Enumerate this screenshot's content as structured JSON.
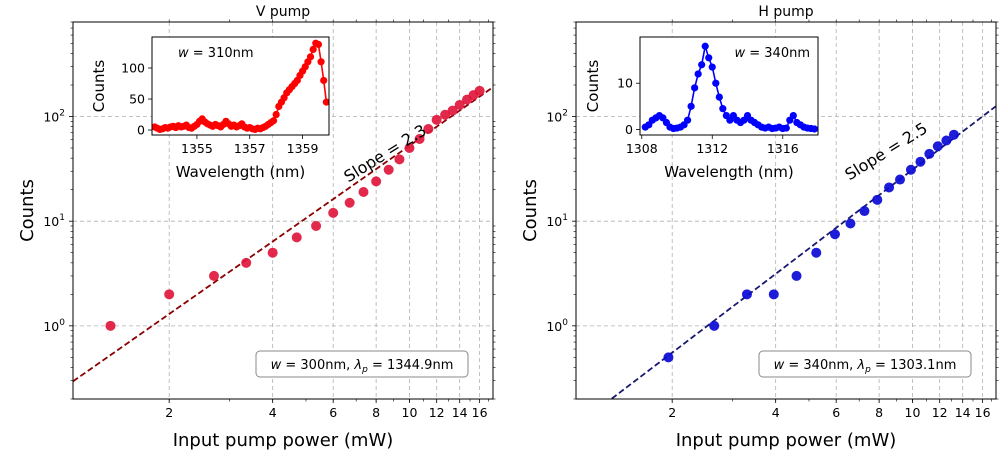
{
  "chart_data": [
    {
      "type": "scatter",
      "title": "V pump",
      "xlabel": "Input pump power (mW)",
      "ylabel": "Counts",
      "xscale": "log",
      "yscale": "log",
      "xlim": [
        1.05,
        17.5
      ],
      "ylim": [
        0.2,
        800
      ],
      "grid": true,
      "xticks": [
        {
          "value": 2,
          "label": "2"
        },
        {
          "value": 4,
          "label": "4"
        },
        {
          "value": 6,
          "label": "6"
        },
        {
          "value": 8,
          "label": "8"
        },
        {
          "value": 10,
          "label": "10"
        },
        {
          "value": 12,
          "label": "12"
        },
        {
          "value": 14,
          "label": "14"
        },
        {
          "value": 16,
          "label": "16"
        }
      ],
      "yticks": [
        {
          "value": 1,
          "base": "10",
          "exp": "0"
        },
        {
          "value": 10,
          "base": "10",
          "exp": "1"
        },
        {
          "value": 100,
          "base": "10",
          "exp": "2"
        }
      ],
      "points": {
        "color": "#e0163c",
        "x": [
          1.35,
          2.0,
          2.7,
          3.35,
          4.0,
          4.7,
          5.35,
          6.0,
          6.7,
          7.35,
          8.0,
          8.7,
          9.35,
          10.0,
          10.7,
          11.35,
          12.0,
          12.7,
          13.35,
          14.0,
          14.7,
          15.35,
          16.0
        ],
        "y": [
          1,
          2,
          3,
          4,
          5,
          7,
          9,
          12,
          15,
          19,
          24,
          31,
          39,
          50,
          61,
          76,
          93,
          104,
          114,
          129,
          145,
          160,
          176
        ]
      },
      "fit": {
        "color": "#8b0000",
        "slope": 2.3,
        "x_ref": 12.0,
        "y_ref": 80
      },
      "slope_label": "Slope = 2.3",
      "params_label": {
        "w": "w",
        "eq1": " = 300nm, ",
        "lam": "λ",
        "sub": "p",
        "eq2": " = 1344.9nm"
      },
      "inset": {
        "type": "line",
        "xlabel": "Wavelength (nm)",
        "ylabel": "Counts",
        "xlim": [
          1353.3,
          1360.0
        ],
        "ylim": [
          -8,
          150
        ],
        "xticks": [
          {
            "value": 1355,
            "label": "1355"
          },
          {
            "value": 1357,
            "label": "1357"
          },
          {
            "value": 1359,
            "label": "1359"
          }
        ],
        "yticks": [
          {
            "value": 0,
            "label": "0"
          },
          {
            "value": 50,
            "label": "50"
          },
          {
            "value": 100,
            "label": "100"
          }
        ],
        "label_w": "w",
        "label_rest": " = 310nm",
        "color": "#ff0000",
        "x": [
          1353.4,
          1353.5,
          1353.6,
          1353.7,
          1353.8,
          1353.9,
          1354.0,
          1354.1,
          1354.2,
          1354.3,
          1354.4,
          1354.5,
          1354.6,
          1354.7,
          1354.8,
          1354.9,
          1355.0,
          1355.1,
          1355.2,
          1355.3,
          1355.4,
          1355.5,
          1355.6,
          1355.7,
          1355.8,
          1355.9,
          1356.0,
          1356.1,
          1356.2,
          1356.3,
          1356.4,
          1356.5,
          1356.6,
          1356.7,
          1356.8,
          1356.9,
          1357.0,
          1357.1,
          1357.2,
          1357.3,
          1357.4,
          1357.5,
          1357.6,
          1357.7,
          1357.8,
          1357.9,
          1358.0,
          1358.1,
          1358.2,
          1358.3,
          1358.4,
          1358.5,
          1358.6,
          1358.7,
          1358.8,
          1358.9,
          1359.0,
          1359.1,
          1359.2,
          1359.3,
          1359.4,
          1359.5,
          1359.6,
          1359.7,
          1359.8,
          1359.9
        ],
        "y": [
          5,
          3,
          1,
          2,
          4,
          3,
          5,
          6,
          4,
          7,
          5,
          6,
          8,
          4,
          3,
          6,
          9,
          14,
          18,
          13,
          10,
          8,
          6,
          9,
          7,
          5,
          9,
          14,
          10,
          6,
          8,
          5,
          7,
          10,
          5,
          3,
          4,
          2,
          1,
          3,
          2,
          4,
          6,
          9,
          12,
          15,
          25,
          38,
          45,
          52,
          60,
          65,
          70,
          75,
          80,
          88,
          95,
          102,
          110,
          118,
          130,
          140,
          138,
          110,
          80,
          45
        ]
      }
    },
    {
      "type": "scatter",
      "title": "H pump",
      "xlabel": "Input pump power (mW)",
      "ylabel": "Counts",
      "xscale": "log",
      "yscale": "log",
      "xlim": [
        1.05,
        17.5
      ],
      "ylim": [
        0.2,
        800
      ],
      "grid": true,
      "xticks": [
        {
          "value": 2,
          "label": "2"
        },
        {
          "value": 4,
          "label": "4"
        },
        {
          "value": 6,
          "label": "6"
        },
        {
          "value": 8,
          "label": "8"
        },
        {
          "value": 10,
          "label": "10"
        },
        {
          "value": 12,
          "label": "12"
        },
        {
          "value": 14,
          "label": "14"
        },
        {
          "value": 16,
          "label": "16"
        }
      ],
      "yticks": [
        {
          "value": 1,
          "base": "10",
          "exp": "0"
        },
        {
          "value": 10,
          "base": "10",
          "exp": "1"
        },
        {
          "value": 100,
          "base": "10",
          "exp": "2"
        }
      ],
      "points": {
        "color": "#0a0ad6",
        "x": [
          1.95,
          2.65,
          3.3,
          3.95,
          4.6,
          5.25,
          5.95,
          6.6,
          7.25,
          7.9,
          8.55,
          9.2,
          9.9,
          10.55,
          11.2,
          11.85,
          12.55,
          13.2
        ],
        "y": [
          0.5,
          1.0,
          2.0,
          2.0,
          3.0,
          5.0,
          7.5,
          9.5,
          12.5,
          16,
          21,
          25,
          31,
          37,
          44,
          52,
          59,
          67
        ]
      },
      "fit": {
        "color": "#191970",
        "slope": 2.5,
        "x_ref": 10.0,
        "y_ref": 31
      },
      "slope_label": "Slope = 2.5",
      "params_label": {
        "w": "w",
        "eq1": " = 340nm, ",
        "lam": "λ",
        "sub": "p",
        "eq2": " = 1303.1nm"
      },
      "inset": {
        "type": "line",
        "xlabel": "Wavelength (nm)",
        "ylabel": "Counts",
        "xlim": [
          1307.9,
          1318.0
        ],
        "ylim": [
          -1.2,
          20
        ],
        "xticks": [
          {
            "value": 1308,
            "label": "1308"
          },
          {
            "value": 1312,
            "label": "1312"
          },
          {
            "value": 1316,
            "label": "1316"
          }
        ],
        "yticks": [
          {
            "value": 0,
            "label": "0"
          },
          {
            "value": 10,
            "label": "10"
          }
        ],
        "label_w": "w",
        "label_rest": " = 340nm",
        "color": "#0000ff",
        "x": [
          1308.2,
          1308.4,
          1308.6,
          1308.8,
          1309.0,
          1309.2,
          1309.4,
          1309.6,
          1309.8,
          1310.0,
          1310.2,
          1310.4,
          1310.6,
          1310.8,
          1311.0,
          1311.2,
          1311.4,
          1311.6,
          1311.8,
          1312.0,
          1312.2,
          1312.4,
          1312.6,
          1312.8,
          1313.0,
          1313.2,
          1313.4,
          1313.6,
          1313.8,
          1314.0,
          1314.2,
          1314.4,
          1314.6,
          1314.8,
          1315.0,
          1315.2,
          1315.4,
          1315.6,
          1315.8,
          1316.0,
          1316.2,
          1316.4,
          1316.6,
          1316.8,
          1317.0,
          1317.2,
          1317.4,
          1317.6,
          1317.8
        ],
        "y": [
          0.5,
          1.0,
          2.0,
          2.5,
          3.0,
          2.5,
          1.5,
          0.5,
          0.2,
          0.3,
          0.5,
          1.0,
          2.0,
          5.0,
          9.0,
          12.0,
          14.0,
          18.0,
          15.5,
          13.5,
          10.0,
          7.0,
          4.5,
          3.0,
          2.0,
          3.0,
          2.0,
          1.5,
          2.0,
          3.0,
          2.0,
          1.5,
          1.0,
          0.5,
          0.3,
          0.5,
          0.2,
          0.3,
          0.5,
          0.2,
          0.3,
          2.0,
          3.0,
          1.5,
          1.0,
          0.5,
          0.3,
          0.2,
          0.1
        ]
      }
    }
  ]
}
